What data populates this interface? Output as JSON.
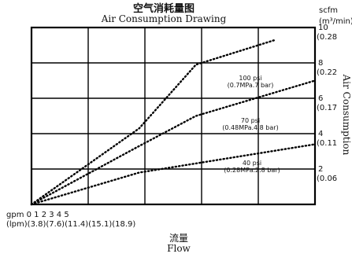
{
  "title_cn": "空气消耗量图",
  "title_en": "Air Consumption Drawing",
  "xlabel_cn": "流量",
  "xlabel_en": "Flow",
  "ylabel_right": "Air Consumption",
  "y_unit_top": "scfm",
  "y_unit_bottom": "(m³/min)",
  "x_row1_label": "gpm 0 1 2 3 4 5",
  "x_row2_label": "(lpm)(3.8)(7.6)(11.4)(15.1)(18.9)",
  "chart_data": {
    "type": "line",
    "title": "Air Consumption Drawing",
    "xlabel": "Flow",
    "ylabel": "Air Consumption",
    "xlim": [
      0,
      5
    ],
    "ylim": [
      0,
      10
    ],
    "grid": true,
    "y_ticks": [
      {
        "value": 2,
        "scfm": "2",
        "m3min": "0.06"
      },
      {
        "value": 4,
        "scfm": "4",
        "m3min": "0.11"
      },
      {
        "value": 6,
        "scfm": "6",
        "m3min": "0.17"
      },
      {
        "value": 8,
        "scfm": "8",
        "m3min": "0.22"
      },
      {
        "value": 10,
        "scfm": "10",
        "m3min": "0.28"
      }
    ],
    "series": [
      {
        "name_line1": "100 psi",
        "name_line2": "(0.7MPa.7 bar)",
        "points": [
          [
            0,
            0
          ],
          [
            1.9,
            4.3
          ],
          [
            2.9,
            7.9
          ],
          [
            4.3,
            9.3
          ]
        ]
      },
      {
        "name_line1": "70 psi",
        "name_line2": "(0.48MPa.4.8 bar)",
        "points": [
          [
            0,
            0
          ],
          [
            1.9,
            3.3
          ],
          [
            2.9,
            5.0
          ],
          [
            5,
            7.0
          ]
        ]
      },
      {
        "name_line1": "40 psi",
        "name_line2": "(0.28MPa.2.8 bar)",
        "points": [
          [
            0,
            0
          ],
          [
            1.9,
            1.8
          ],
          [
            5,
            3.4
          ]
        ]
      }
    ]
  }
}
